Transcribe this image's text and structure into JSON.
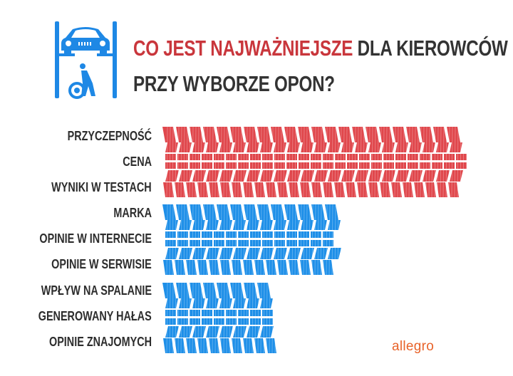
{
  "header": {
    "title_highlight": "CO JEST NAJWAŻNIEJSZE",
    "title_rest": "DLA KIEROWCÓW",
    "title_line2": "PRZY WYBORZE OPON?",
    "icon": "car-lift-mechanic-icon"
  },
  "chart_data": {
    "type": "bar",
    "orientation": "horizontal",
    "title": "CO JEST NAJWAŻNIEJSZE DLA KIEROWCÓW PRZY WYBORZE OPON?",
    "categories": [
      "PRZYCZEPNOŚĆ",
      "CENA",
      "WYNIKI W TESTACH",
      "MARKA",
      "OPINIE W INTERNECIE",
      "OPINIE W SERWISIE",
      "WPŁYW NA SPALANIE",
      "GENEROWANY HAŁAS",
      "OPINIE ZNAJOMYCH"
    ],
    "groups": [
      {
        "categories": [
          "PRZYCZEPNOŚĆ",
          "CENA",
          "WYNIKI W TESTACH"
        ],
        "relative_length": 1.0,
        "color": "#e0474c"
      },
      {
        "categories": [
          "MARKA",
          "OPINIE W INTERNECIE",
          "OPINIE W SERWISIE"
        ],
        "relative_length": 0.58,
        "color": "#1e8fe8"
      },
      {
        "categories": [
          "WPŁYW NA SPALANIE",
          "GENEROWANY HAŁAS",
          "OPINIE ZNAJOMYCH"
        ],
        "relative_length": 0.38,
        "color": "#1e8fe8"
      }
    ],
    "bar_style": "tire-tread",
    "axis": "none",
    "grid": false
  },
  "brand": {
    "logo_text": "allegro",
    "color": "#e8632a"
  }
}
